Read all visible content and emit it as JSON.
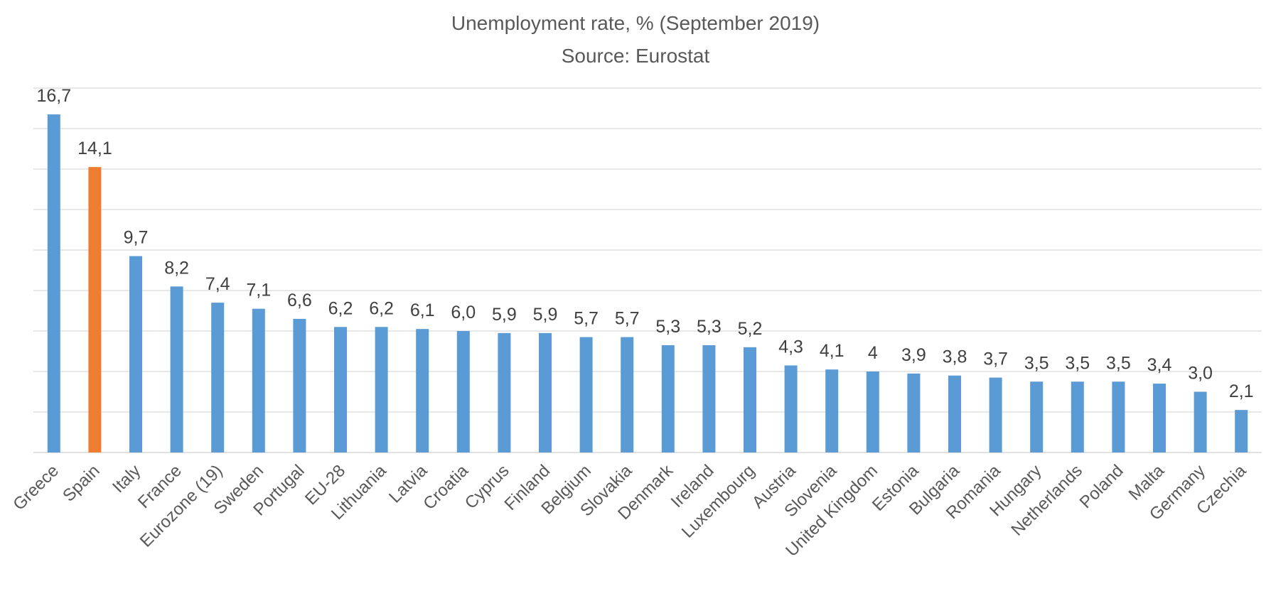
{
  "chart_data": {
    "type": "bar",
    "title": "Unemployment rate, % (September 2019)",
    "subtitle": "Source: Eurostat",
    "xlabel": "",
    "ylabel": "",
    "ylim": [
      0,
      18
    ],
    "grid": true,
    "y_tick_labels_shown": false,
    "legend": "none",
    "colors": {
      "default": "#5B9BD5",
      "highlight": "#ED7D31",
      "grid": "#D9D9D9"
    },
    "highlight_category": "Spain",
    "categories": [
      "Greece",
      "Spain",
      "Italy",
      "France",
      "Eurozone (19)",
      "Sweden",
      "Portugal",
      "EU-28",
      "Lithuania",
      "Latvia",
      "Croatia",
      "Cyprus",
      "Finland",
      "Belgium",
      "Slovakia",
      "Denmark",
      "Ireland",
      "Luxembourg",
      "Austria",
      "Slovenia",
      "United Kingdom",
      "Estonia",
      "Bulgaria",
      "Romania",
      "Hungary",
      "Netherlands",
      "Poland",
      "Malta",
      "Germany",
      "Czechia"
    ],
    "values": [
      16.7,
      14.1,
      9.7,
      8.2,
      7.4,
      7.1,
      6.6,
      6.2,
      6.2,
      6.1,
      6.0,
      5.9,
      5.9,
      5.7,
      5.7,
      5.3,
      5.3,
      5.2,
      4.3,
      4.1,
      4,
      3.9,
      3.8,
      3.7,
      3.5,
      3.5,
      3.5,
      3.4,
      3.0,
      2.1
    ],
    "data_labels": [
      "16,7",
      "14,1",
      "9,7",
      "8,2",
      "7,4",
      "7,1",
      "6,6",
      "6,2",
      "6,2",
      "6,1",
      "6,0",
      "5,9",
      "5,9",
      "5,7",
      "5,7",
      "5,3",
      "5,3",
      "5,2",
      "4,3",
      "4,1",
      "4",
      "3,9",
      "3,8",
      "3,7",
      "3,5",
      "3,5",
      "3,5",
      "3,4",
      "3,0",
      "2,1"
    ]
  }
}
